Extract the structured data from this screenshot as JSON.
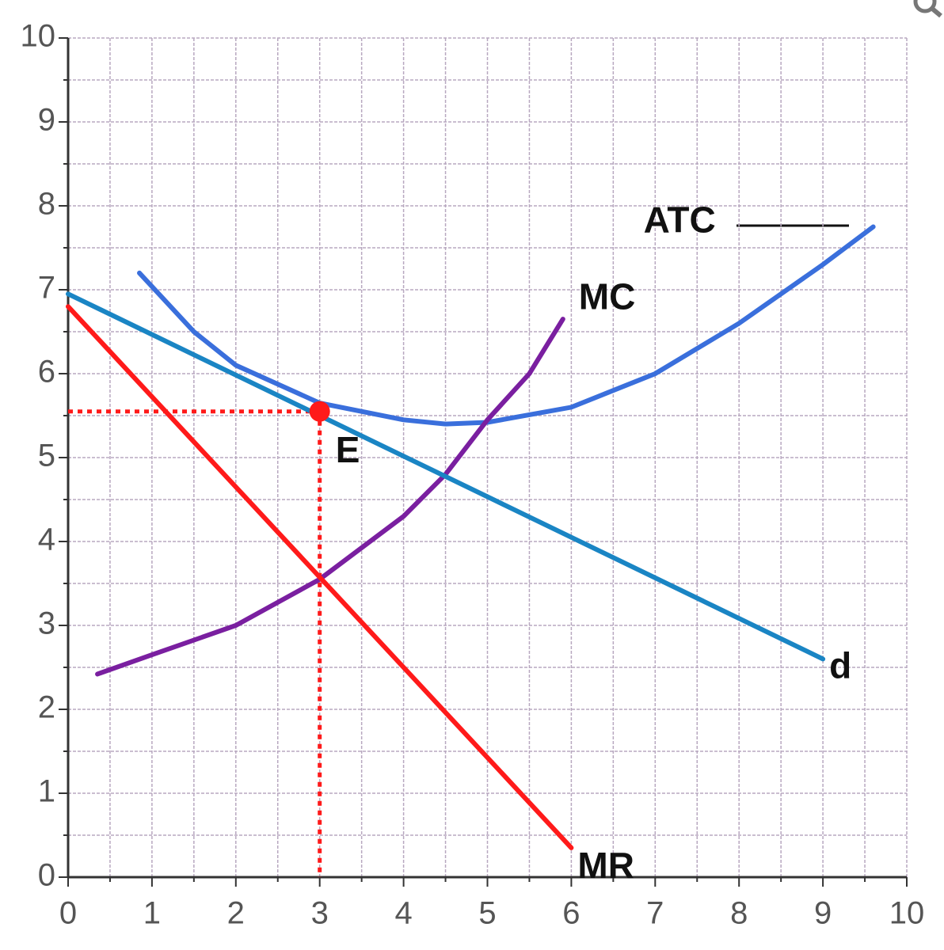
{
  "chart_data": {
    "type": "line",
    "xlim": [
      0,
      10
    ],
    "ylim": [
      0,
      10
    ],
    "xticks": [
      0,
      1,
      2,
      3,
      4,
      5,
      6,
      7,
      8,
      9,
      10
    ],
    "yticks": [
      0,
      1,
      2,
      3,
      4,
      5,
      6,
      7,
      8,
      9,
      10
    ],
    "grid": true,
    "series": [
      {
        "name": "ATC",
        "color": "#3a6fdc",
        "x": [
          0.85,
          1.5,
          2,
          3,
          4,
          4.5,
          5,
          6,
          7,
          8,
          9,
          9.6
        ],
        "values": [
          7.2,
          6.5,
          6.1,
          5.65,
          5.45,
          5.4,
          5.42,
          5.6,
          6.0,
          6.6,
          7.3,
          7.75
        ]
      },
      {
        "name": "MC",
        "color": "#7a1fa0",
        "x": [
          0.35,
          1,
          2,
          3,
          4,
          4.5,
          5,
          5.5,
          5.9
        ],
        "values": [
          2.42,
          2.65,
          3.0,
          3.55,
          4.3,
          4.8,
          5.45,
          6.0,
          6.65
        ]
      },
      {
        "name": "d",
        "color": "#1a85c4",
        "x": [
          0,
          9
        ],
        "values": [
          6.95,
          2.6
        ]
      },
      {
        "name": "MR",
        "color": "#ff1a1a",
        "x": [
          0,
          6
        ],
        "values": [
          6.8,
          0.35
        ]
      }
    ],
    "points": [
      {
        "label": "E",
        "x": 3,
        "y": 5.55,
        "color": "#ff1a1a"
      }
    ]
  }
}
